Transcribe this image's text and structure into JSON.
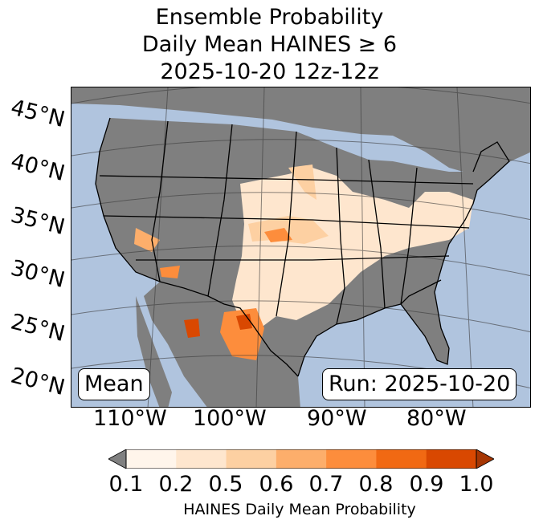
{
  "title": {
    "line1": "Ensemble Probability",
    "line2": "Daily Mean HAINES ≥ 6",
    "line3": "2025-10-20 12z-12z"
  },
  "map": {
    "lat_labels": [
      "45°N",
      "40°N",
      "35°N",
      "30°N",
      "25°N",
      "20°N"
    ],
    "lon_labels": [
      "110°W",
      "100°W",
      "90°W",
      "80°W"
    ],
    "mean_box": "Mean",
    "run_box": "Run: 2025-10-20",
    "colors": {
      "ocean": "#b0c4de",
      "land_no_data": "#7f7f7f",
      "border": "#000000"
    }
  },
  "colorbar": {
    "label": "HAINES Daily Mean Probability",
    "ticks": [
      "0.1",
      "0.2",
      "0.5",
      "0.6",
      "0.7",
      "0.8",
      "0.9",
      "1.0"
    ],
    "under_color": "#808080",
    "colors": [
      "#fff5eb",
      "#fee6ce",
      "#fdd0a2",
      "#fdae6b",
      "#fd8d3c",
      "#f16913",
      "#d94801",
      "#a63603"
    ]
  }
}
